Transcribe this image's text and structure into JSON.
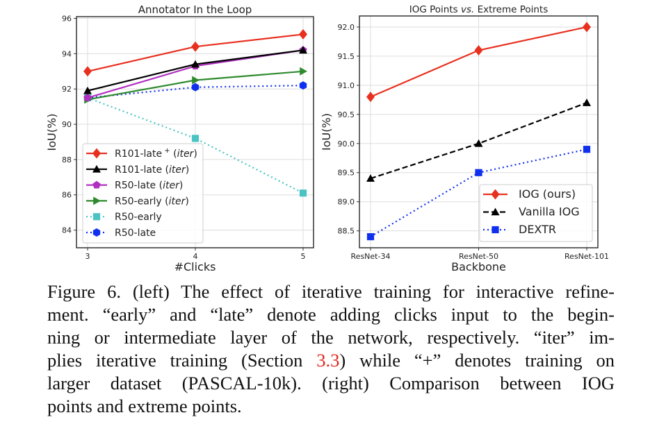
{
  "chart_data": [
    {
      "type": "line",
      "title": "Annotator In the Loop",
      "xlabel": "#Clicks",
      "ylabel": "IoU(%)",
      "x": [
        3,
        4,
        5
      ],
      "xticks": [
        "3",
        "4",
        "5"
      ],
      "xlim": [
        2.9,
        5.1
      ],
      "yticks": [
        84,
        86,
        88,
        90,
        92,
        94,
        96
      ],
      "ylim": [
        83.0,
        96.1
      ],
      "grid": true,
      "legend_position": "lower-left",
      "series": [
        {
          "name": "R101-late",
          "sup": "+",
          "italic": "iter",
          "values": [
            93.0,
            94.4,
            95.1
          ],
          "color": "#e8301f",
          "marker": "diamond",
          "linestyle": "solid"
        },
        {
          "name": "R101-late",
          "sup": "",
          "italic": "iter",
          "values": [
            91.9,
            93.4,
            94.2
          ],
          "color": "#000000",
          "marker": "triangle-up",
          "linestyle": "solid"
        },
        {
          "name": "R50-late",
          "sup": "",
          "italic": "iter",
          "values": [
            91.5,
            93.3,
            94.2
          ],
          "color": "#b02fc0",
          "marker": "pentagon",
          "linestyle": "solid"
        },
        {
          "name": "R50-early",
          "sup": "",
          "italic": "iter",
          "values": [
            91.4,
            92.5,
            93.0
          ],
          "color": "#2e8a2e",
          "marker": "triangle-right",
          "linestyle": "solid"
        },
        {
          "name": "R50-early",
          "sup": "",
          "italic": "",
          "values": [
            91.5,
            89.2,
            86.1
          ],
          "color": "#4cc3c3",
          "marker": "square",
          "linestyle": "dotted"
        },
        {
          "name": "R50-late",
          "sup": "",
          "italic": "",
          "values": [
            91.5,
            92.1,
            92.2
          ],
          "color": "#1030f0",
          "marker": "hexagon",
          "linestyle": "dotted"
        }
      ]
    },
    {
      "type": "line",
      "title": "IOG Points vs.  Extreme Points",
      "title_italic": "vs.",
      "xlabel": "Backbone",
      "ylabel": "IoU(%)",
      "categories": [
        "ResNet-34",
        "ResNet-50",
        "ResNet-101"
      ],
      "yticks": [
        88.5,
        89.0,
        89.5,
        90.0,
        90.5,
        91.0,
        91.5,
        92.0
      ],
      "ylim": [
        88.21,
        92.19
      ],
      "grid": true,
      "legend_position": "lower-right",
      "series": [
        {
          "name": "IOG (ours)",
          "values": [
            90.8,
            91.6,
            92.0
          ],
          "color": "#e8301f",
          "marker": "diamond",
          "linestyle": "solid"
        },
        {
          "name": "Vanilla IOG",
          "values": [
            89.4,
            90.0,
            90.7
          ],
          "color": "#000000",
          "marker": "triangle-up",
          "linestyle": "dashed"
        },
        {
          "name": "DEXTR",
          "values": [
            88.4,
            89.5,
            89.9
          ],
          "color": "#1030f0",
          "marker": "square",
          "linestyle": "dotted"
        }
      ]
    }
  ],
  "caption": {
    "lines": [
      "Figure 6. (left) The effect of iterative training for interactive refine-",
      "ment. “early” and “late” denote adding clicks input to the begin-",
      "ning or intermediate layer of the network, respectively. “iter” im-"
    ],
    "line4_before": "plies iterative training (Section ",
    "line4_ref": "3.3",
    "line4_after": ") while “+” denotes training on",
    "line5": "larger dataset (PASCAL-10k).  (right) Comparison between IOG",
    "line6": "points and extreme points.",
    "ref_color": "#e0261c"
  }
}
